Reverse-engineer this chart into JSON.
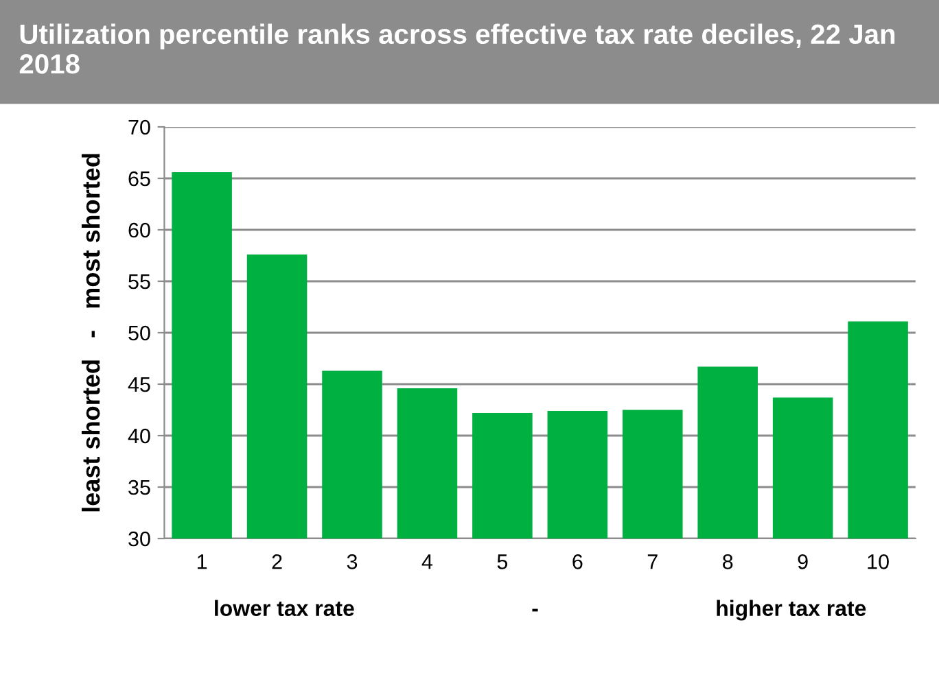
{
  "chart_data": {
    "type": "bar",
    "title": "Utilization percentile ranks across effective tax rate deciles, 22 Jan 2018",
    "xlabel": "lower tax rate                             -                             higher tax rate",
    "ylabel": "least shorted   -   most shorted",
    "categories": [
      "1",
      "2",
      "3",
      "4",
      "5",
      "6",
      "7",
      "8",
      "9",
      "10"
    ],
    "values": [
      65.6,
      57.6,
      46.3,
      44.6,
      42.2,
      42.4,
      42.5,
      46.7,
      43.7,
      51.1
    ],
    "color": "#00b040",
    "ylim": [
      30,
      70
    ],
    "yticks": [
      30,
      35,
      40,
      45,
      50,
      55,
      60,
      65,
      70
    ],
    "grid": "y",
    "legend": false
  }
}
